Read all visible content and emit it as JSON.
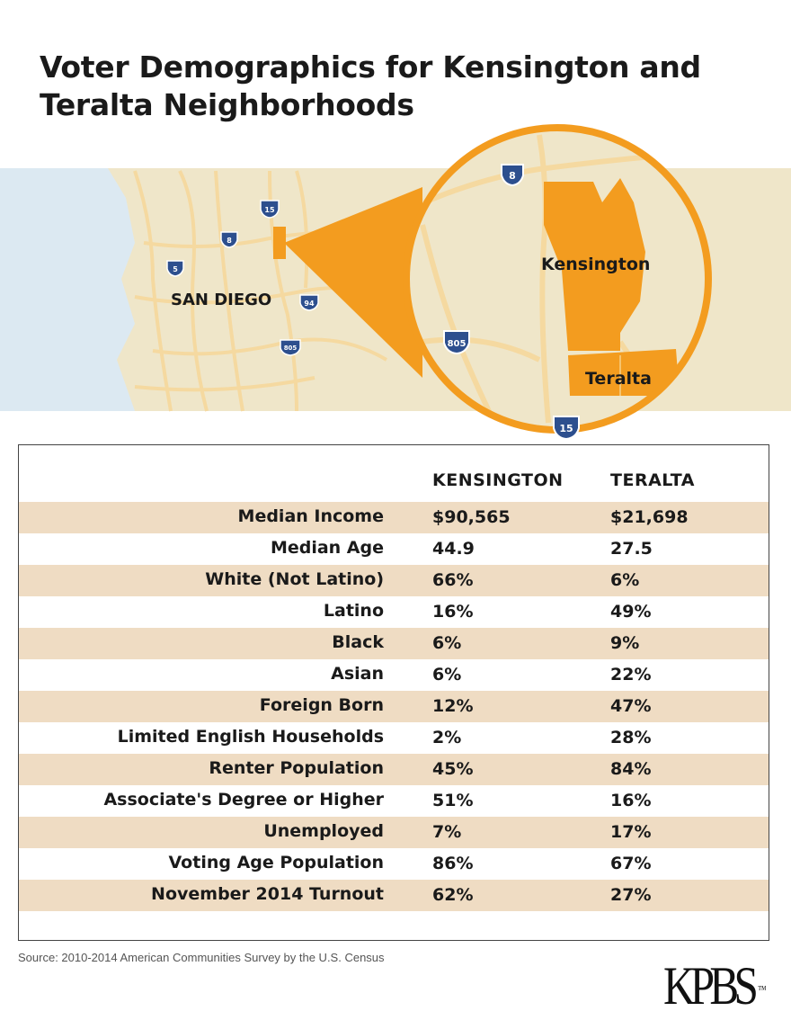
{
  "title": {
    "line1": "Voter Demographics for Kensington and",
    "line2": "Teralta Neighborhoods"
  },
  "map": {
    "city_label": "SAN DIEGO",
    "neighborhood_1": "Kensington",
    "neighborhood_2": "Teralta",
    "highway_shields": [
      "15",
      "8",
      "5",
      "94",
      "805"
    ],
    "inset_shields": [
      "8",
      "805",
      "15"
    ],
    "colors": {
      "land": "#efe6c9",
      "water": "#dce9f2",
      "road": "#f5d9a0",
      "accent": "#f39c1f",
      "shield": "#2d4f8e"
    }
  },
  "chart_data": {
    "type": "table",
    "columns": [
      "",
      "KENSINGTON",
      "TERALTA"
    ],
    "rows": [
      {
        "label": "Median Income",
        "kensington": "$90,565",
        "teralta": "$21,698"
      },
      {
        "label": "Median Age",
        "kensington": "44.9",
        "teralta": "27.5"
      },
      {
        "label": "White (Not Latino)",
        "kensington": "66%",
        "teralta": "6%"
      },
      {
        "label": "Latino",
        "kensington": "16%",
        "teralta": "49%"
      },
      {
        "label": "Black",
        "kensington": "6%",
        "teralta": "9%"
      },
      {
        "label": "Asian",
        "kensington": "6%",
        "teralta": "22%"
      },
      {
        "label": "Foreign Born",
        "kensington": "12%",
        "teralta": "47%"
      },
      {
        "label": "Limited English Households",
        "kensington": "2%",
        "teralta": "28%"
      },
      {
        "label": "Renter Population",
        "kensington": "45%",
        "teralta": "84%"
      },
      {
        "label": "Associate's Degree or Higher",
        "kensington": "51%",
        "teralta": "16%"
      },
      {
        "label": "Unemployed",
        "kensington": "7%",
        "teralta": "17%"
      },
      {
        "label": "Voting Age Population",
        "kensington": "86%",
        "teralta": "67%"
      },
      {
        "label": "November 2014 Turnout",
        "kensington": "62%",
        "teralta": "27%"
      }
    ],
    "row_shade_color": "#efdcc3"
  },
  "source": "Source: 2010-2014 American Communities Survey by the U.S. Census",
  "logo": {
    "text": "KPBS",
    "mark": "™"
  }
}
